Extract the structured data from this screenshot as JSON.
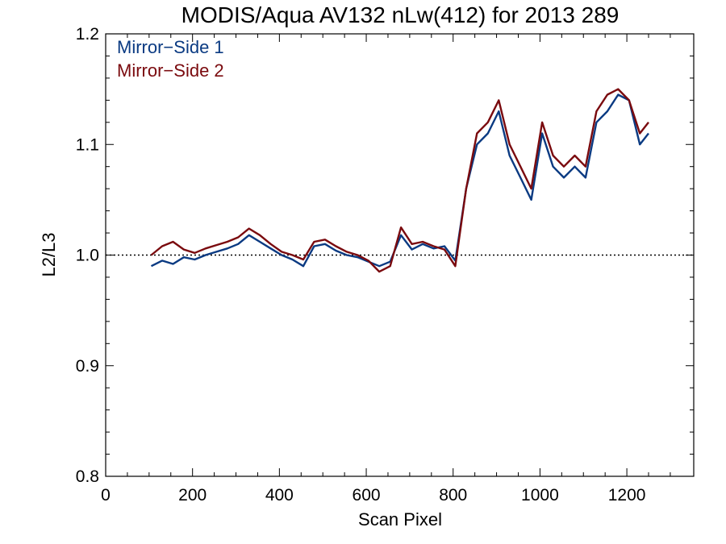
{
  "colors": {
    "ms1": "#0a3a82",
    "ms2": "#7a0a0e",
    "axis": "#000000"
  },
  "chart_data": {
    "type": "line",
    "title": "MODIS/Aqua AV132 nLw(412) for 2013 289",
    "xlabel": "Scan Pixel",
    "ylabel": "L2/L3",
    "xlim": [
      0,
      1354
    ],
    "ylim": [
      0.8,
      1.2
    ],
    "xticks": [
      0,
      200,
      400,
      600,
      800,
      1000,
      1200
    ],
    "yticks": [
      0.8,
      0.9,
      1.0,
      1.1,
      1.2
    ],
    "xtick_labels": [
      "0",
      "200",
      "400",
      "600",
      "800",
      "1000",
      "1200"
    ],
    "ytick_labels": [
      "0.8",
      "0.9",
      "1.0",
      "1.1",
      "1.2"
    ],
    "reference_line": {
      "y": 1.0,
      "style": "dotted"
    },
    "legend": {
      "position": "top-left",
      "entries": [
        "Mirror−Side 1",
        "Mirror−Side 2"
      ]
    },
    "x": [
      105,
      130,
      155,
      180,
      205,
      230,
      255,
      280,
      305,
      330,
      355,
      380,
      405,
      430,
      455,
      480,
      505,
      530,
      555,
      580,
      605,
      630,
      655,
      680,
      705,
      730,
      755,
      780,
      805,
      830,
      855,
      880,
      905,
      930,
      955,
      980,
      1005,
      1030,
      1055,
      1080,
      1105,
      1130,
      1155,
      1180,
      1205,
      1230,
      1250
    ],
    "series": [
      {
        "name": "Mirror−Side 1",
        "values": [
          0.99,
          0.995,
          0.992,
          0.998,
          0.996,
          1.0,
          1.003,
          1.006,
          1.01,
          1.018,
          1.012,
          1.006,
          1.0,
          0.996,
          0.99,
          1.008,
          1.01,
          1.004,
          1.0,
          0.998,
          0.994,
          0.99,
          0.994,
          1.018,
          1.005,
          1.01,
          1.006,
          1.008,
          0.995,
          1.06,
          1.1,
          1.11,
          1.13,
          1.09,
          1.07,
          1.05,
          1.11,
          1.08,
          1.07,
          1.08,
          1.07,
          1.12,
          1.13,
          1.145,
          1.14,
          1.1,
          1.11
        ]
      },
      {
        "name": "Mirror−Side 2",
        "values": [
          1.0,
          1.008,
          1.012,
          1.005,
          1.002,
          1.006,
          1.009,
          1.012,
          1.016,
          1.024,
          1.018,
          1.01,
          1.003,
          1.0,
          0.996,
          1.012,
          1.014,
          1.008,
          1.003,
          1.0,
          0.995,
          0.985,
          0.99,
          1.025,
          1.01,
          1.012,
          1.008,
          1.005,
          0.99,
          1.06,
          1.11,
          1.12,
          1.14,
          1.1,
          1.08,
          1.06,
          1.12,
          1.09,
          1.08,
          1.09,
          1.08,
          1.13,
          1.145,
          1.15,
          1.14,
          1.11,
          1.12
        ]
      }
    ],
    "grid": false
  }
}
